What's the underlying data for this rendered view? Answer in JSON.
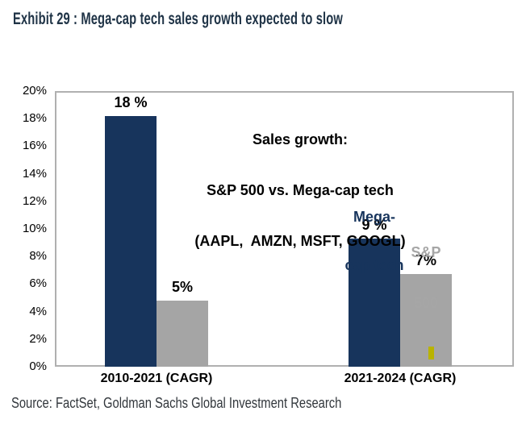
{
  "title": "Exhibit 29 : Mega-cap tech sales growth expected to slow",
  "source": "Source: FactSet, Goldman Sachs Global Investment Research",
  "colors": {
    "mega_cap_navy": "#17345c",
    "sp500_gray": "#a5a5a5",
    "sp500_label_gray": "#a6a6a6",
    "plot_border": "#b0b0b0",
    "title_text": "#203447",
    "cursor_artifact_yellow": "#b9b300",
    "text_black": "#000000"
  },
  "chart_data": {
    "type": "bar",
    "title": "Sales growth: S&P 500 vs. Mega-cap tech (AAPL, AMZN, MSFT, GOOGL)",
    "categories": [
      "2010-2021 (CAGR)",
      "2021-2024 (CAGR)"
    ],
    "series": [
      {
        "name": "Mega-cap tech",
        "key": "mega-cap-tech",
        "color": "#17345c",
        "values": [
          18.2,
          9.3
        ],
        "labels": [
          "18 %",
          "9 %"
        ]
      },
      {
        "name": "S&P 500",
        "key": "sp-500",
        "color": "#a5a5a5",
        "values": [
          4.8,
          6.7
        ],
        "labels": [
          "5%",
          "7%"
        ]
      }
    ],
    "ylabel": "",
    "xlabel": "",
    "ylim": [
      0,
      20
    ],
    "ytick_step": 2,
    "ytick_suffix": "%",
    "grid": false,
    "legend_position": "inline-labels",
    "annotation_lines": [
      "Sales growth:",
      "S&P 500 vs. Mega-cap tech",
      "(AAPL,  AMZN, MSFT, GOOGL)"
    ],
    "inline_series_labels": [
      {
        "series": "Mega-cap tech",
        "line1": "Mega-",
        "line2": "cap tech",
        "color": "#17345c"
      },
      {
        "series": "S&P 500",
        "line1": "S&P",
        "line2": "500",
        "color": "#a6a6a6"
      }
    ]
  }
}
